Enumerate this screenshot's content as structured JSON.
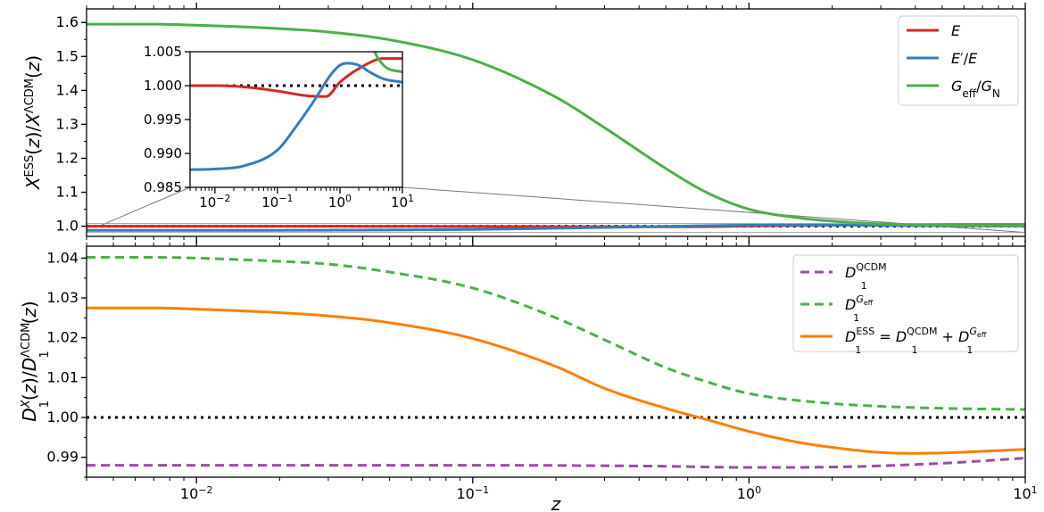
{
  "chart_data": [
    {
      "id": "top",
      "type": "line",
      "xscale": "log",
      "xlim": [
        0.004,
        10
      ],
      "ylim": [
        0.97,
        1.64
      ],
      "ylabel": {
        "base": "X",
        "sup1": "ESS",
        "mid": "(z)/X",
        "sup2": "ΛCDM",
        "tail": "(z)"
      },
      "yticks": [
        "1.0",
        "1.1",
        "1.2",
        "1.3",
        "1.4",
        "1.5",
        "1.6"
      ],
      "yticks_values": [
        1.0,
        1.1,
        1.2,
        1.3,
        1.4,
        1.5,
        1.6
      ],
      "reference_line": {
        "y": 1.0,
        "style": "dotted",
        "color": "#000000"
      },
      "series": [
        {
          "key": "E",
          "name": {
            "base": "E",
            "sup": "",
            "sub": "",
            "tail": ""
          },
          "color": "#d62728",
          "x": [
            0.004,
            0.01,
            0.03,
            0.1,
            0.3,
            0.6,
            1.0,
            2.0,
            5.0,
            10.0
          ],
          "y": [
            1.0,
            1.0,
            0.9998,
            0.9992,
            0.9985,
            0.9984,
            1.0005,
            1.0025,
            1.004,
            1.004
          ]
        },
        {
          "key": "Eprime",
          "name": {
            "base": "E",
            "sup": "′",
            "sub": "",
            "tail": "/E"
          },
          "color": "#377eb8",
          "x": [
            0.004,
            0.01,
            0.03,
            0.1,
            0.2,
            0.4,
            0.7,
            1.0,
            1.3,
            2.0,
            3.0,
            5.0,
            10.0
          ],
          "y": [
            0.9876,
            0.9877,
            0.9882,
            0.9905,
            0.994,
            0.998,
            1.0015,
            1.003,
            1.0033,
            1.003,
            1.002,
            1.001,
            1.0005
          ]
        },
        {
          "key": "Geff",
          "name": {
            "base": "G",
            "sup": "",
            "sub": "eff",
            "tail": "/G",
            "sub2": "N"
          },
          "color": "#4daf4a",
          "x": [
            0.004,
            0.007,
            0.01,
            0.02,
            0.03,
            0.05,
            0.1,
            0.2,
            0.3,
            0.5,
            0.7,
            1.0,
            1.5,
            2.0,
            3.0,
            5.0,
            10.0
          ],
          "y": [
            1.595,
            1.595,
            1.592,
            1.582,
            1.572,
            1.549,
            1.49,
            1.38,
            1.29,
            1.17,
            1.1,
            1.05,
            1.025,
            1.015,
            1.007,
            1.003,
            1.002
          ]
        }
      ],
      "legend_position": "upper-right",
      "inset": {
        "xscale": "log",
        "xlim": [
          0.004,
          10
        ],
        "ylim": [
          0.985,
          1.005
        ],
        "yticks": [
          "0.985",
          "0.990",
          "0.995",
          "1.000",
          "1.005"
        ],
        "yticks_values": [
          0.985,
          0.99,
          0.995,
          1.0,
          1.005
        ],
        "xticks_values": [
          0.01,
          0.1,
          1,
          10
        ],
        "xticks": [
          {
            "base": "10",
            "exp": "−2"
          },
          {
            "base": "10",
            "exp": "−1"
          },
          {
            "base": "10",
            "exp": "0"
          },
          {
            "base": "10",
            "exp": "1"
          }
        ],
        "reference_line": {
          "y": 1.0,
          "style": "dotted",
          "color": "#000000"
        },
        "shows_series": [
          "E",
          "Eprime",
          "Geff"
        ]
      }
    },
    {
      "id": "bottom",
      "type": "line",
      "xscale": "log",
      "xlim": [
        0.004,
        10
      ],
      "ylim": [
        0.985,
        1.043
      ],
      "xlabel": "z",
      "ylabel": {
        "base": "D",
        "sup1": "X",
        "sub1": "1",
        "mid": "(z)/D",
        "sup2": "ΛCDM",
        "sub2": "1",
        "tail": "(z)"
      },
      "yticks": [
        "0.99",
        "1.00",
        "1.01",
        "1.02",
        "1.03",
        "1.04"
      ],
      "yticks_values": [
        0.99,
        1.0,
        1.01,
        1.02,
        1.03,
        1.04
      ],
      "xticks_values": [
        0.01,
        0.1,
        1,
        10
      ],
      "xticks": [
        {
          "base": "10",
          "exp": "−2"
        },
        {
          "base": "10",
          "exp": "−1"
        },
        {
          "base": "10",
          "exp": "0"
        },
        {
          "base": "10",
          "exp": "1"
        }
      ],
      "reference_line": {
        "y": 1.0,
        "style": "dotted",
        "color": "#000000"
      },
      "series": [
        {
          "key": "D_QCDM",
          "name": {
            "base": "D",
            "sub": "1",
            "sup": "QCDM",
            "tail": ""
          },
          "color": "#984ea3",
          "dash": true,
          "x": [
            0.004,
            0.01,
            0.1,
            0.5,
            1.0,
            2.0,
            5.0,
            10.0
          ],
          "y": [
            0.988,
            0.988,
            0.988,
            0.98775,
            0.98745,
            0.98755,
            0.9885,
            0.9898
          ]
        },
        {
          "key": "D_Geff",
          "name": {
            "base": "D",
            "sub": "1",
            "sup": "G",
            "supsub": "eff",
            "tail": ""
          },
          "color": "#4daf4a",
          "dash": true,
          "x": [
            0.004,
            0.007,
            0.01,
            0.02,
            0.03,
            0.05,
            0.1,
            0.2,
            0.3,
            0.5,
            0.7,
            1.0,
            2.0,
            3.0,
            5.0,
            10.0
          ],
          "y": [
            1.0402,
            1.0402,
            1.04,
            1.0392,
            1.0385,
            1.0365,
            1.0325,
            1.025,
            1.0195,
            1.0125,
            1.009,
            1.006,
            1.0035,
            1.0028,
            1.0023,
            1.002
          ]
        },
        {
          "key": "D_ESS",
          "name": {
            "base": "D",
            "sub": "1",
            "sup": "ESS",
            "eq": " = ",
            "term1": "QCDM",
            "plus": " + ",
            "term2": "G",
            "term2sub": "eff"
          },
          "color": "#ff7f00",
          "dash": false,
          "x": [
            0.004,
            0.007,
            0.01,
            0.02,
            0.03,
            0.05,
            0.1,
            0.2,
            0.3,
            0.5,
            0.7,
            1.0,
            1.5,
            2.0,
            3.0,
            4.0,
            5.0,
            7.0,
            10.0
          ],
          "y": [
            1.0275,
            1.0275,
            1.0272,
            1.0263,
            1.0255,
            1.0238,
            1.0198,
            1.0128,
            1.0073,
            1.0023,
            0.9995,
            0.9965,
            0.9938,
            0.9925,
            0.9912,
            0.991,
            0.9911,
            0.9915,
            0.992
          ]
        }
      ],
      "legend_position": "upper-right"
    }
  ]
}
